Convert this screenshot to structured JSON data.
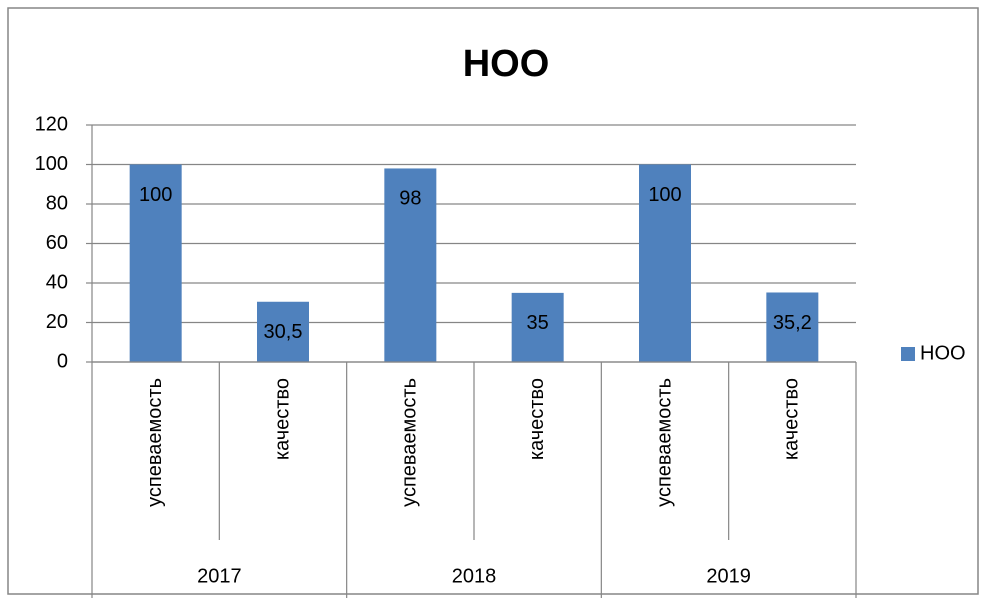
{
  "chart_data": {
    "type": "bar",
    "title": "НОО",
    "categories": [
      "успеваемость",
      "качество",
      "успеваемость",
      "качество",
      "успеваемость",
      "качество"
    ],
    "category_groups": [
      "2017",
      "2018",
      "2019"
    ],
    "series": [
      {
        "name": "НОО",
        "color": "#4f81bd",
        "values": [
          100,
          30.5,
          98,
          35,
          100,
          35.2
        ],
        "value_labels": [
          "100",
          "30,5",
          "98",
          "35",
          "100",
          "35,2"
        ]
      }
    ],
    "ylim": [
      0,
      120
    ],
    "yticks": [
      0,
      20,
      40,
      60,
      80,
      100,
      120
    ],
    "grid": true,
    "legend": "right"
  }
}
